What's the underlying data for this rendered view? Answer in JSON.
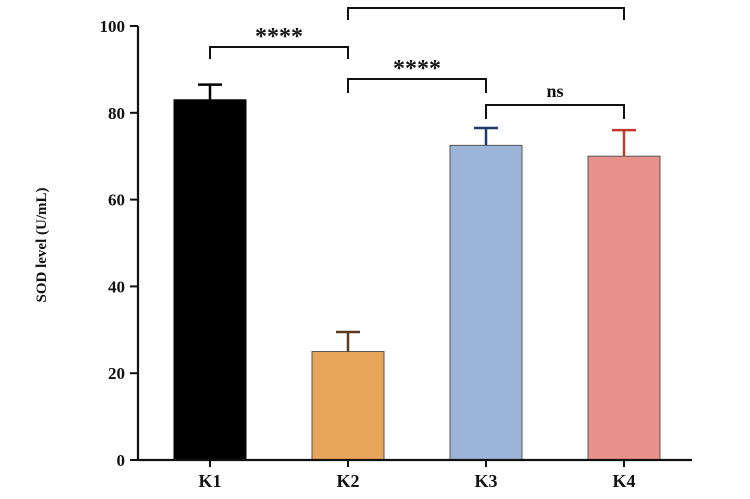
{
  "chart_data": {
    "type": "bar",
    "categories": [
      "K1",
      "K2",
      "K3",
      "K4"
    ],
    "values": [
      83,
      25,
      72.5,
      70
    ],
    "errors": [
      3.5,
      4.5,
      4,
      6
    ],
    "colors": [
      "#000000",
      "#E8A65A",
      "#9BB4D8",
      "#E8908A"
    ],
    "error_colors": [
      "#000000",
      "#5B3A1E",
      "#1F3B6B",
      "#C0392B"
    ],
    "ylabel": "SOD level (U/mL)",
    "ylim": [
      0,
      100
    ],
    "yticks": [
      0,
      20,
      40,
      60,
      80,
      100
    ],
    "grid": false,
    "significance": [
      {
        "from": 0,
        "to": 1,
        "label": "****"
      },
      {
        "from": 1,
        "to": 2,
        "label": "****"
      },
      {
        "from": 2,
        "to": 3,
        "label": "ns"
      },
      {
        "from": 1,
        "to": 3,
        "label": ""
      }
    ]
  }
}
